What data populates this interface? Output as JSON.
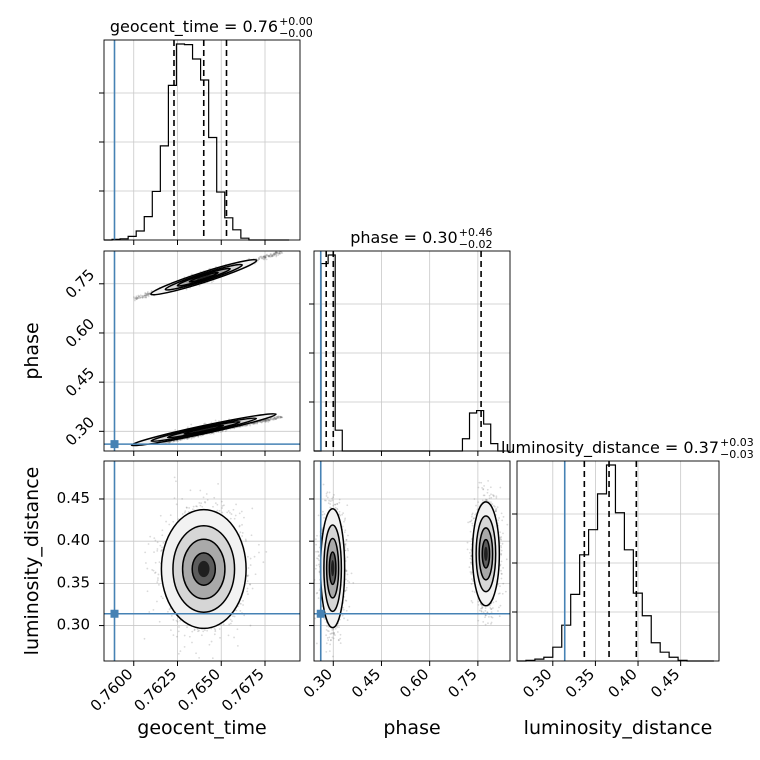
{
  "chart_data": {
    "type": "corner",
    "parameters": [
      "geocent_time",
      "phase",
      "luminosity_distance"
    ],
    "truth_color": "#4682b4",
    "grid": true,
    "titles": [
      {
        "param": "geocent_time",
        "text": "geocent_time = 0.76",
        "sup": "+0.00",
        "sub": "−0.00"
      },
      {
        "param": "phase",
        "text": "phase = 0.30",
        "sup": "+0.46",
        "sub": "−0.02"
      },
      {
        "param": "luminosity_distance",
        "text": "luminosity_distance = 0.37",
        "sup": "+0.03",
        "sub": "−0.03"
      }
    ],
    "axis_labels": {
      "x": [
        "geocent_time",
        "phase",
        "luminosity_distance"
      ],
      "y": [
        "phase",
        "luminosity_distance"
      ]
    },
    "axis_ranges": {
      "geocent_time": [
        0.7583,
        0.7695
      ],
      "phase": [
        0.24,
        0.85
      ],
      "luminosity_distance": [
        0.258,
        0.495
      ]
    },
    "ticks": {
      "geocent_time": [
        "0.7600",
        "0.7625",
        "0.7650",
        "0.7675"
      ],
      "phase": [
        "0.30",
        "0.45",
        "0.60",
        "0.75"
      ],
      "luminosity_distance": [
        "0.30",
        "0.35",
        "0.40",
        "0.45"
      ],
      "luminosity_distance_y": [
        "0.30",
        "0.35",
        "0.40",
        "0.45"
      ]
    },
    "truths": {
      "geocent_time": 0.7589,
      "phase": 0.261,
      "luminosity_distance": 0.314
    },
    "quantiles": {
      "geocent_time": [
        0.7623,
        0.764,
        0.7653
      ],
      "phase": [
        0.278,
        0.3,
        0.76
      ],
      "luminosity_distance": [
        0.337,
        0.366,
        0.398
      ]
    },
    "histograms": {
      "geocent_time": {
        "edges": [
          0.7583,
          0.75876,
          0.75922,
          0.75968,
          0.76014,
          0.7606,
          0.76106,
          0.76152,
          0.76198,
          0.76244,
          0.7629,
          0.76336,
          0.76382,
          0.76428,
          0.76474,
          0.7652,
          0.76566,
          0.76612,
          0.76658,
          0.76704,
          0.7675,
          0.76796,
          0.76842,
          0.76888
        ],
        "counts": [
          0,
          1,
          2,
          6,
          15,
          39,
          81,
          157,
          258,
          327,
          326,
          302,
          267,
          171,
          80,
          37,
          17,
          3,
          0,
          0,
          0,
          0,
          0
        ]
      },
      "phase": {
        "edges": [
          0.24,
          0.262,
          0.284,
          0.306,
          0.328,
          0.35,
          0.372,
          0.394,
          0.416,
          0.438,
          0.46,
          0.482,
          0.504,
          0.526,
          0.548,
          0.57,
          0.592,
          0.614,
          0.636,
          0.658,
          0.68,
          0.702,
          0.724,
          0.746,
          0.768,
          0.79,
          0.812,
          0.834
        ],
        "counts": [
          0,
          153,
          160,
          17,
          0,
          0,
          0,
          0,
          0,
          0,
          0,
          0,
          0,
          0,
          0,
          0,
          0,
          0,
          0,
          0,
          0,
          10,
          31,
          33,
          22,
          6,
          0
        ]
      },
      "luminosity_distance": {
        "edges": [
          0.258,
          0.2685,
          0.279,
          0.2895,
          0.3,
          0.3105,
          0.321,
          0.3315,
          0.342,
          0.3525,
          0.363,
          0.3735,
          0.384,
          0.3945,
          0.405,
          0.4155,
          0.426,
          0.4365,
          0.447,
          0.4575,
          0.468,
          0.4785,
          0.489
        ],
        "counts": [
          0,
          1,
          3,
          6,
          22,
          57,
          106,
          169,
          209,
          266,
          312,
          236,
          177,
          108,
          72,
          29,
          14,
          6,
          1,
          0,
          0,
          0
        ]
      }
    },
    "panels_2d": [
      {
        "x": "geocent_time",
        "y": "phase",
        "modes": [
          {
            "cx": 0.764,
            "cy": 0.77,
            "sx": 0.0006,
            "sy": 0.01,
            "ridge_from": [
              0.76,
              0.703
            ],
            "ridge_to": [
              0.7685,
              0.848
            ]
          },
          {
            "cx": 0.764,
            "cy": 0.305,
            "sx": 0.0008,
            "sy": 0.008,
            "ridge_from": [
              0.7616,
              0.266
            ],
            "ridge_to": [
              0.7685,
              0.345
            ]
          }
        ]
      },
      {
        "x": "geocent_time",
        "y": "luminosity_distance",
        "modes": [
          {
            "cx": 0.764,
            "cy": 0.367,
            "sx": 0.0011,
            "sy": 0.032
          }
        ]
      },
      {
        "x": "phase",
        "y": "luminosity_distance",
        "modes": [
          {
            "cx": 0.298,
            "cy": 0.368,
            "sx": 0.017,
            "sy": 0.032
          },
          {
            "cx": 0.775,
            "cy": 0.385,
            "sx": 0.019,
            "sy": 0.028
          }
        ]
      }
    ]
  }
}
